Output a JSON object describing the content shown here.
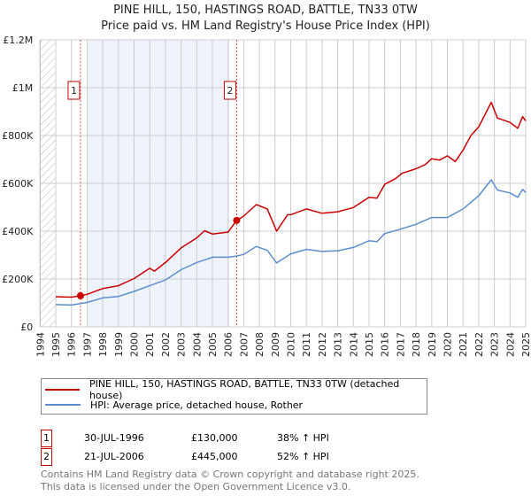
{
  "chart_data": {
    "type": "line",
    "title": "PINE HILL, 150, HASTINGS ROAD, BATTLE, TN33 0TW",
    "subtitle": "Price paid vs. HM Land Registry's House Price Index (HPI)",
    "xlim": [
      1994,
      2025
    ],
    "ylim": [
      0,
      1200000
    ],
    "x_ticks": [
      "1994",
      "1995",
      "1996",
      "1997",
      "1998",
      "1999",
      "2000",
      "2001",
      "2002",
      "2003",
      "2004",
      "2005",
      "2006",
      "2007",
      "2008",
      "2009",
      "2010",
      "2011",
      "2012",
      "2013",
      "2014",
      "2015",
      "2016",
      "2017",
      "2018",
      "2019",
      "2020",
      "2021",
      "2022",
      "2023",
      "2024",
      "2025"
    ],
    "y_ticks": [
      {
        "v": 0,
        "label": "£0"
      },
      {
        "v": 200000,
        "label": "£200K"
      },
      {
        "v": 400000,
        "label": "£400K"
      },
      {
        "v": 600000,
        "label": "£600K"
      },
      {
        "v": 800000,
        "label": "£800K"
      },
      {
        "v": 1000000,
        "label": "£1M"
      },
      {
        "v": 1200000,
        "label": "£1.2M"
      }
    ],
    "grid": true,
    "shaded_range": [
      1997.0,
      2006.1
    ],
    "hatched_range": [
      1994,
      1995
    ],
    "series": [
      {
        "name": "PINE HILL, 150, HASTINGS ROAD, BATTLE, TN33 0TW (detached house)",
        "color": "#cc0000",
        "x": [
          1995,
          1996,
          1996.58,
          1997,
          1998,
          1999,
          2000,
          2001,
          2001.3,
          2002,
          2003,
          2004,
          2004.5,
          2005,
          2006,
          2006.55,
          2007,
          2007.8,
          2008.5,
          2009.1,
          2009.8,
          2010,
          2011,
          2012,
          2013,
          2014,
          2015,
          2015.5,
          2016,
          2016.7,
          2017.1,
          2018,
          2018.6,
          2019,
          2019.5,
          2020,
          2020.5,
          2021,
          2021.5,
          2022,
          2022.8,
          2023.2,
          2024,
          2024.5,
          2024.8,
          2025
        ],
        "y": [
          126000,
          124000,
          130000,
          136000,
          160000,
          172000,
          202000,
          245000,
          233000,
          269000,
          330000,
          372000,
          402000,
          388000,
          396000,
          445000,
          463000,
          511000,
          493000,
          400000,
          469000,
          469000,
          493000,
          475000,
          481000,
          499000,
          542000,
          538000,
          596000,
          620000,
          642000,
          661000,
          679000,
          703000,
          697000,
          715000,
          691000,
          739000,
          800000,
          836000,
          939000,
          873000,
          855000,
          830000,
          879000,
          861000
        ]
      },
      {
        "name": "HPI: Average price, detached house, Rother",
        "color": "#5b8fd0",
        "x": [
          1995,
          1996,
          1997,
          1998,
          1999,
          2000,
          2001,
          2002,
          2003,
          2004,
          2005,
          2006,
          2006.55,
          2007,
          2007.8,
          2008.5,
          2009.1,
          2010,
          2011,
          2012,
          2013,
          2014,
          2015,
          2015.5,
          2016,
          2017,
          2018,
          2019,
          2020,
          2021,
          2022,
          2022.8,
          2023.2,
          2024,
          2024.5,
          2024.8,
          2025
        ],
        "y": [
          93000,
          91000,
          102000,
          121000,
          127000,
          148000,
          172000,
          196000,
          239000,
          269000,
          291000,
          291000,
          296000,
          303000,
          336000,
          320000,
          267000,
          305000,
          324000,
          315000,
          318000,
          332000,
          360000,
          356000,
          390000,
          408000,
          429000,
          457000,
          457000,
          493000,
          548000,
          615000,
          572000,
          560000,
          542000,
          575000,
          562000
        ]
      }
    ],
    "annotations": [
      {
        "label": "1",
        "x": 1996.58,
        "y": 130000
      },
      {
        "label": "2",
        "x": 2006.55,
        "y": 445000
      }
    ]
  },
  "table": [
    {
      "num": "1",
      "date": "30-JUL-1996",
      "price": "£130,000",
      "hpi": "38% ↑ HPI"
    },
    {
      "num": "2",
      "date": "21-JUL-2006",
      "price": "£445,000",
      "hpi": "52% ↑ HPI"
    }
  ],
  "footer": {
    "line1": "Contains HM Land Registry data © Crown copyright and database right 2025.",
    "line2": "This data is licensed under the Open Government Licence v3.0."
  },
  "colors": {
    "property": "#cc0000",
    "hpi": "#5b8fd0",
    "shade": "#eef3fc",
    "grid": "#cccccc"
  }
}
